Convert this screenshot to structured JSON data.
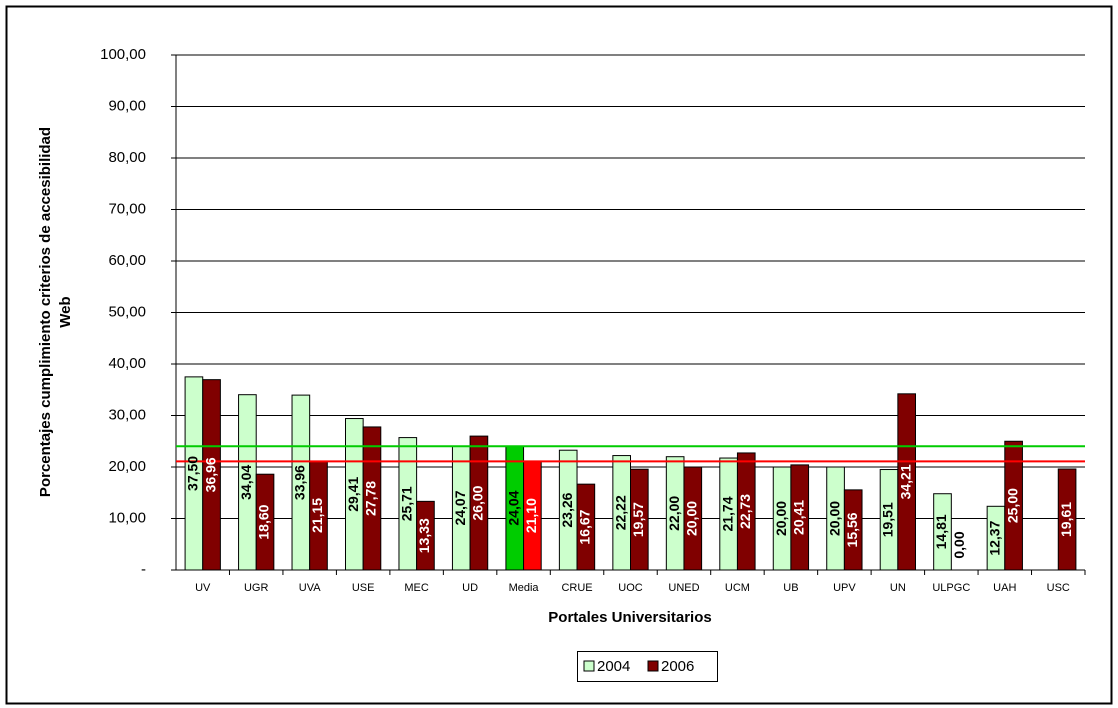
{
  "chart_data": {
    "type": "bar",
    "ylabel": [
      "Porcentajes cumplimiento criterios de accesibilidad",
      "Web"
    ],
    "xlabel": "Portales Universitarios",
    "categories": [
      "UV",
      "UGR",
      "UVA",
      "USE",
      "MEC",
      "UD",
      "Media",
      "CRUE",
      "UOC",
      "UNED",
      "UCM",
      "UB",
      "UPV",
      "UN",
      "ULPGC",
      "UAH",
      "USC"
    ],
    "series": [
      {
        "name": "2004",
        "color": "#ccffcc",
        "highlight_color": "#00cc00",
        "label_color": "#000000",
        "values": [
          37.5,
          34.04,
          33.96,
          29.41,
          25.71,
          24.07,
          24.04,
          23.26,
          22.22,
          22.0,
          21.74,
          20.0,
          20.0,
          19.51,
          14.81,
          12.37,
          null
        ],
        "value_labels": [
          "37,50",
          "34,04",
          "33,96",
          "29,41",
          "25,71",
          "24,07",
          "24,04",
          "23,26",
          "22,22",
          "22,00",
          "21,74",
          "20,00",
          "20,00",
          "19,51",
          "14,81",
          "12,37",
          null
        ]
      },
      {
        "name": "2006",
        "color": "#800000",
        "highlight_color": "#ff0000",
        "label_color": "#ffffff",
        "values": [
          36.96,
          18.6,
          21.15,
          27.78,
          13.33,
          26.0,
          21.1,
          16.67,
          19.57,
          20.0,
          22.73,
          20.41,
          15.56,
          34.21,
          0.0,
          25.0,
          19.61
        ],
        "value_labels": [
          "36,96",
          "18,60",
          "21,15",
          "27,78",
          "13,33",
          "26,00",
          "21,10",
          "16,67",
          "19,57",
          "20,00",
          "22,73",
          "20,41",
          "15,56",
          "34,21",
          "0,00",
          "25,00",
          "19,61"
        ]
      }
    ],
    "highlight_category": "Media",
    "ylim": [
      0,
      100
    ],
    "yticks": [
      {
        "value": 0,
        "label": "-"
      },
      {
        "value": 10,
        "label": "10,00"
      },
      {
        "value": 20,
        "label": "20,00"
      },
      {
        "value": 30,
        "label": "30,00"
      },
      {
        "value": 40,
        "label": "40,00"
      },
      {
        "value": 50,
        "label": "50,00"
      },
      {
        "value": 60,
        "label": "60,00"
      },
      {
        "value": 70,
        "label": "70,00"
      },
      {
        "value": 80,
        "label": "80,00"
      },
      {
        "value": 90,
        "label": "90,00"
      },
      {
        "value": 100,
        "label": "100,00"
      }
    ],
    "grid": true,
    "legend": "bottom"
  }
}
